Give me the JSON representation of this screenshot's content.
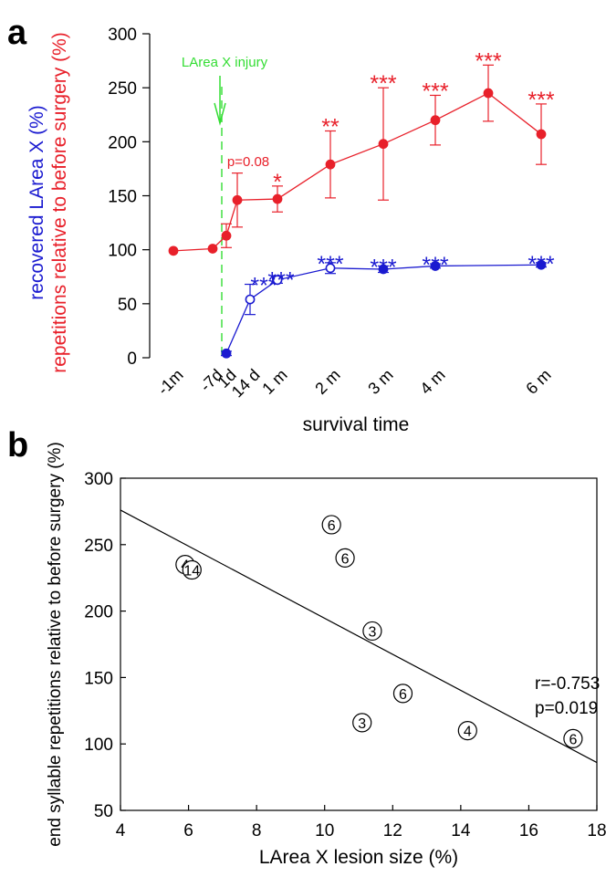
{
  "panels": {
    "a_label": "a",
    "b_label": "b"
  },
  "colors": {
    "red": "#e8202a",
    "blue": "#1a1ad0",
    "green": "#33dd33",
    "black": "#000000"
  },
  "chart_data": [
    {
      "type": "line",
      "panel": "a",
      "xlabel": "survival time",
      "ylabel_blue": "recovered LArea X (%)",
      "ylabel_red": "repetitions relative to before surgery (%)",
      "ylim": [
        0,
        300
      ],
      "yticks": [
        0,
        50,
        100,
        150,
        200,
        250,
        300
      ],
      "xticks": [
        {
          "label": "-1m",
          "t": -30
        },
        {
          "label": "-7d",
          "t": -7
        },
        {
          "label": "1d",
          "t": 1
        },
        {
          "label": "14 d",
          "t": 14
        },
        {
          "label": "1 m",
          "t": 30
        },
        {
          "label": "2 m",
          "t": 60
        },
        {
          "label": "3 m",
          "t": 90
        },
        {
          "label": "4 m",
          "t": 120
        },
        {
          "label": "6 m",
          "t": 180
        }
      ],
      "injury_annotation": {
        "label": "LArea X injury",
        "t": 0
      },
      "series": [
        {
          "color": "#e8202a",
          "points": [
            {
              "t": -30,
              "y": 99,
              "err": 0,
              "sig": ""
            },
            {
              "t": -7,
              "y": 101,
              "err": 0,
              "sig": ""
            },
            {
              "t": 1,
              "y": 113,
              "err": 11,
              "sig": ""
            },
            {
              "t": 4,
              "y": 146,
              "err": 25,
              "sig": "p=0.08"
            },
            {
              "t": 30,
              "y": 147,
              "err": 12,
              "sig": "*"
            },
            {
              "t": 60,
              "y": 179,
              "err": 31,
              "sig": "**"
            },
            {
              "t": 90,
              "y": 198,
              "err": 52,
              "sig": "***"
            },
            {
              "t": 120,
              "y": 220,
              "err": 23,
              "sig": "***"
            },
            {
              "t": 150,
              "y": 245,
              "err": 26,
              "sig": "***"
            },
            {
              "t": 180,
              "y": 207,
              "err": 28,
              "sig": "***"
            }
          ]
        },
        {
          "color": "#1a1ad0",
          "points": [
            {
              "t": 1,
              "y": 4,
              "err": 2,
              "open": false,
              "sig": ""
            },
            {
              "t": 14,
              "y": 54,
              "err": 14,
              "open": true,
              "sig": "***"
            },
            {
              "t": 30,
              "y": 72,
              "err": 3,
              "open": true,
              "sig": "***"
            },
            {
              "t": 60,
              "y": 83,
              "err": 5,
              "open": true,
              "sig": "***"
            },
            {
              "t": 90,
              "y": 82,
              "err": 3,
              "open": false,
              "sig": "***"
            },
            {
              "t": 120,
              "y": 85,
              "err": 2,
              "open": false,
              "sig": "***"
            },
            {
              "t": 180,
              "y": 86,
              "err": 2,
              "open": false,
              "sig": "***"
            }
          ]
        }
      ]
    },
    {
      "type": "scatter",
      "panel": "b",
      "xlabel": "LArea X lesion size (%)",
      "ylabel": "end syllable repetitions relative to before surgery (%)",
      "xlim": [
        4,
        18
      ],
      "ylim": [
        50,
        300
      ],
      "xticks": [
        4,
        6,
        8,
        10,
        12,
        14,
        16,
        18
      ],
      "yticks": [
        50,
        100,
        150,
        200,
        250,
        300
      ],
      "points": [
        {
          "x": 10.2,
          "y": 265,
          "label": "6"
        },
        {
          "x": 10.6,
          "y": 240,
          "label": "6"
        },
        {
          "x": 5.9,
          "y": 235,
          "label": "4"
        },
        {
          "x": 6.1,
          "y": 231,
          "label": "14"
        },
        {
          "x": 11.4,
          "y": 185,
          "label": "3"
        },
        {
          "x": 12.3,
          "y": 138,
          "label": "6"
        },
        {
          "x": 11.1,
          "y": 116,
          "label": "3"
        },
        {
          "x": 14.2,
          "y": 110,
          "label": "4"
        },
        {
          "x": 17.3,
          "y": 104,
          "label": "6"
        }
      ],
      "regression": {
        "x": [
          4,
          18
        ],
        "y": [
          276,
          86
        ]
      },
      "stats": {
        "r": "r=-0.753",
        "p": "p=0.019"
      }
    }
  ]
}
